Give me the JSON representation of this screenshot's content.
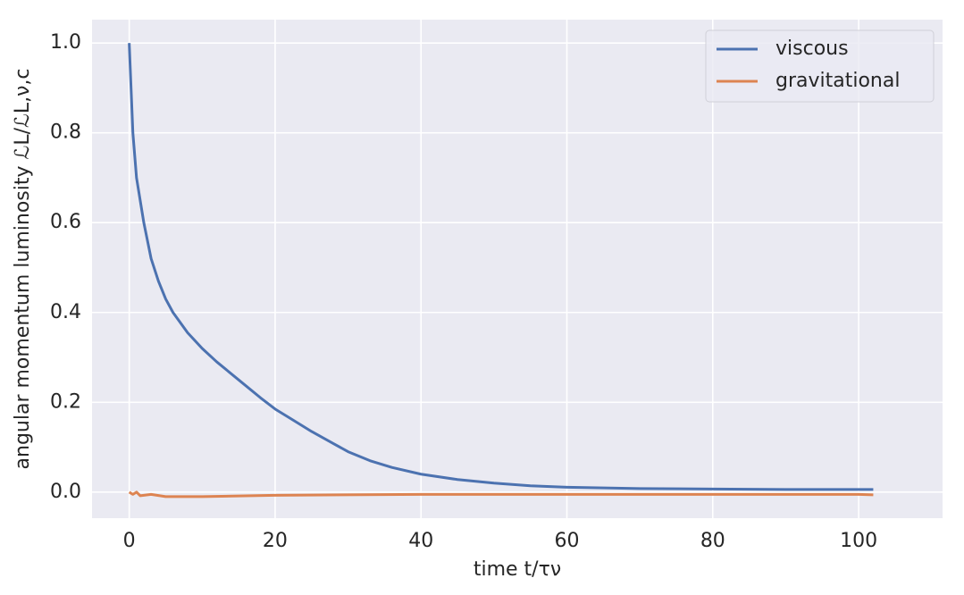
{
  "chart_data": {
    "type": "line",
    "xlabel": "time t/τν",
    "ylabel": "angular momentum luminosity ℒL/ℒL,ν,c",
    "xlim": [
      -5.1,
      111.5
    ],
    "ylim": [
      -0.058,
      1.052
    ],
    "xticks": [
      0,
      20,
      40,
      60,
      80,
      100
    ],
    "yticks": [
      {
        "value": 0,
        "label": "0.0"
      },
      {
        "value": 0.2,
        "label": "0.2"
      },
      {
        "value": 0.4,
        "label": "0.4"
      },
      {
        "value": 0.6,
        "label": "0.6"
      },
      {
        "value": 0.8,
        "label": "0.8"
      },
      {
        "value": 1,
        "label": "1.0"
      }
    ],
    "grid": true,
    "legend": "upper right",
    "series": [
      {
        "name": "viscous",
        "color": "#4c72b0",
        "x": [
          0,
          0.5,
          1,
          2,
          3,
          4,
          5,
          6,
          8,
          10,
          12,
          15,
          18,
          20,
          22,
          25,
          28,
          30,
          33,
          36,
          40,
          45,
          50,
          55,
          60,
          70,
          80,
          90,
          102
        ],
        "values": [
          1.0,
          0.8,
          0.7,
          0.6,
          0.52,
          0.47,
          0.43,
          0.4,
          0.355,
          0.32,
          0.29,
          0.25,
          0.21,
          0.185,
          0.165,
          0.135,
          0.108,
          0.09,
          0.07,
          0.055,
          0.04,
          0.028,
          0.02,
          0.014,
          0.011,
          0.008,
          0.007,
          0.006,
          0.006
        ]
      },
      {
        "name": "gravitational",
        "color": "#dd8452",
        "x": [
          0,
          0.5,
          1,
          1.5,
          3,
          5,
          10,
          20,
          40,
          60,
          80,
          100,
          102
        ],
        "values": [
          0,
          -0.005,
          0,
          -0.008,
          -0.005,
          -0.01,
          -0.01,
          -0.007,
          -0.005,
          -0.005,
          -0.005,
          -0.005,
          -0.006
        ]
      }
    ]
  }
}
